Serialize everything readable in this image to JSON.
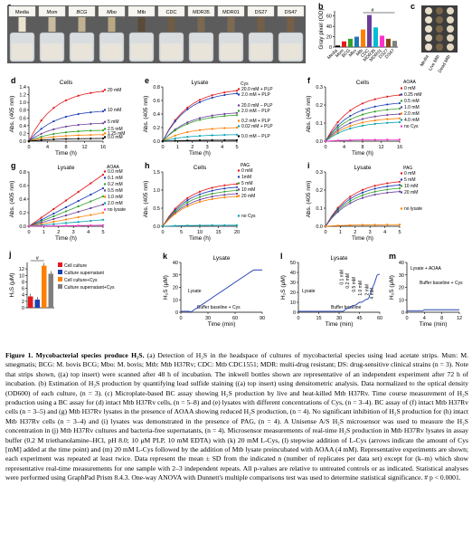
{
  "panels": {
    "a": {
      "letter": "a",
      "strips": [
        "Media",
        "Msm",
        "BCG",
        "Mbo",
        "Mtb",
        "CDC",
        "MDR35",
        "MDR01",
        "DS27",
        "DS47"
      ],
      "strip_colors": [
        "#ece3cf",
        "#c9bba0",
        "#c1b191",
        "#b9a883",
        "#5a4a38",
        "#6e5c45",
        "#7b6850",
        "#7e6a51",
        "#735f46",
        "#775f46"
      ]
    },
    "b": {
      "letter": "b",
      "ylabel": "Gray pixel (OD)",
      "categories": [
        "Media",
        "Msm",
        "BCG",
        "Mbo",
        "Mtb",
        "CDC",
        "MDR35",
        "MDR01",
        "DS27",
        "DS47"
      ],
      "values": [
        3,
        11,
        16,
        20,
        34,
        62,
        38,
        22,
        16,
        12
      ],
      "colors": [
        "#000000",
        "#e31a1c",
        "#33a02c",
        "#1f78b4",
        "#ff7f00",
        "#6a3d9a",
        "#00bcd4",
        "#ff33cc",
        "#8b4513",
        "#808080"
      ],
      "yticks": [
        "0",
        "20",
        "40",
        "60"
      ],
      "sig": "#"
    },
    "c": {
      "letter": "c",
      "labels": [
        "Media",
        "Live Mtb",
        "Dead Mtb"
      ],
      "column_colors": [
        "#e9e0cc",
        "#7a6448",
        "#e3d9c2"
      ]
    },
    "d": {
      "letter": "d",
      "title": "Cells",
      "ylabel": "Abs. (405 nm)",
      "xlabel": "Time (h)",
      "xticks": [
        "0",
        "4",
        "8",
        "12",
        "16"
      ],
      "yticks": [
        "0.0",
        "0.2",
        "0.4",
        "0.6",
        "0.8",
        "1.0",
        "1.2",
        "1.4"
      ],
      "legend": [
        "20 mM",
        "10 mM",
        "5 mM",
        "2.5 mM",
        "1.25 mM",
        "0.0 mM"
      ]
    },
    "e": {
      "letter": "e",
      "title": "Lysate",
      "ylabel": "Abs. (405 nm)",
      "xlabel": "Time (h)",
      "xticks": [
        "0",
        "1",
        "2",
        "3",
        "4",
        "5"
      ],
      "yticks": [
        "0.0",
        "0.2",
        "0.4",
        "0.6",
        "0.8"
      ],
      "legend_title": "Cys",
      "legend": [
        "20.0 mM + PLP",
        "2.0 mM + PLP",
        "20.0 mM – PLP",
        "2.0 mM – PLP",
        "0.2 mM + PLP",
        "0.02 mM + PLP",
        "0.0 mM – PLP"
      ]
    },
    "f": {
      "letter": "f",
      "title": "Cells",
      "ylabel": "Abs. (405 nm)",
      "xlabel": "Time (h)",
      "xticks": [
        "0",
        "4",
        "8",
        "12",
        "16"
      ],
      "yticks": [
        "0.0",
        "0.1",
        "0.2",
        "0.3"
      ],
      "legend_title": "AOAA",
      "legend": [
        "0 mM",
        "0.25 mM",
        "0.5 mM",
        "1.0 mM",
        "2.0 mM",
        "4.0 mM",
        "no Cys"
      ]
    },
    "g": {
      "letter": "g",
      "title": "Lysate",
      "ylabel": "Abs. (405 nm)",
      "xlabel": "Time (h)",
      "xticks": [
        "0",
        "1",
        "2",
        "3",
        "4",
        "5"
      ],
      "yticks": [
        "0.0",
        "0.2",
        "0.4",
        "0.6",
        "0.8"
      ],
      "legend_title": "AOAA",
      "legend": [
        "0.0 mM",
        "0.1 mM",
        "0.2 mM",
        "0.5 mM",
        "1.0 mM",
        "2.0 mM",
        "no lysate"
      ]
    },
    "h": {
      "letter": "h",
      "title": "Cells",
      "ylabel": "Abs. (405 nm)",
      "xlabel": "Time (h)",
      "xticks": [
        "0",
        "5",
        "10",
        "15",
        "20"
      ],
      "yticks": [
        "0.0",
        "0.5",
        "1.0",
        "1.5"
      ],
      "legend_title": "PAG",
      "legend": [
        "0 mM",
        "1mM",
        "5 mM",
        "10 mM",
        "20 mM",
        "no Cys"
      ]
    },
    "i": {
      "letter": "i",
      "title": "Lysate",
      "ylabel": "Abs. (405 nm)",
      "xlabel": "Time (h)",
      "xticks": [
        "0",
        "1",
        "2",
        "3",
        "4",
        "5"
      ],
      "yticks": [
        "0.0",
        "0.1",
        "0.2",
        "0.3"
      ],
      "legend_title": "PAG",
      "legend": [
        "0 mM",
        "5 mM",
        "10 mM",
        "20 mM",
        "no lysate"
      ]
    },
    "j": {
      "letter": "j",
      "ylabel": "H₂S (μM)",
      "yticks": [
        "0",
        "2",
        "4",
        "6",
        "8",
        "10",
        "12"
      ],
      "legend": [
        "Cell culture",
        "Culture supernatant",
        "Cell culture+Cys",
        "Culture supernatant+Cys"
      ],
      "colors": [
        "#e31a1c",
        "#1f3fb4",
        "#ff7f00",
        "#7f7f7f"
      ],
      "values": [
        3.5,
        2.5,
        13.0,
        10.5
      ],
      "sig": "#"
    },
    "k": {
      "letter": "k",
      "title": "Lysate",
      "ylabel": "H₂S (μM)",
      "xlabel": "Time (min)",
      "xticks": [
        "0",
        "30",
        "60",
        "90"
      ],
      "yticks": [
        "0",
        "10",
        "20",
        "30",
        "40"
      ],
      "annotations": [
        "Lysate",
        "Buffer baseline + Cys"
      ]
    },
    "l": {
      "letter": "l",
      "title": "Lysate",
      "ylabel": "H₂S (μM)",
      "xlabel": "Time (min)",
      "xticks": [
        "0",
        "15",
        "30",
        "45",
        "60"
      ],
      "yticks": [
        "0",
        "10",
        "20",
        "30",
        "40",
        "50"
      ],
      "annotations": [
        "Lysate",
        "Buffer baseline"
      ],
      "additions": [
        "0.1 mM",
        "0.2 mM",
        "0.5 mM",
        "1.0 mM",
        "2 mM",
        "4 mM"
      ]
    },
    "m": {
      "letter": "m",
      "ylabel": "H₂S (μM)",
      "xlabel": "Time (min)",
      "xticks": [
        "0",
        "4",
        "8",
        "12"
      ],
      "yticks": [
        "0",
        "10",
        "20",
        "30",
        "40"
      ],
      "annotations": [
        "Lysate + AOAA",
        "Buffer baseline + Cys"
      ]
    }
  },
  "caption": {
    "title": "Figure 1. Mycobacterial species produce H₂S.",
    "body": " (a) Detection of H₂S in the headspace of cultures of mycobacterial species using lead acetate strips. Msm: M. smegmatis; BCG: M. bovis BCG; Mbo: M. bovis; Mtb: Mtb H37Rv; CDC: Mtb CDC1551; MDR: multi-drug resistant; DS: drug-sensitive clinical strains (n = 3). Note that strips shown, ((a) top insert) were scanned after 48 h of incubation. The inkwell bottles shown are representative of an independent experiment after 72 h of incubation. (b) Estimation of H₂S production by quantifying lead sulfide staining ((a) top insert) using densitometric analysis. Data normalized to the optical density (OD600) of each culture, (n = 3). (c) Microplate-based BC assay showing H₂S production by live and heat-killed Mtb H37Rv. Time course measurement of H₂S production using a BC assay for (d) intact Mtb H37Rv cells, (n = 5–8) and (e) lysates with different concentrations of Cys, (n = 3–4). BC assay of (f) intact Mtb H37Rv cells (n = 3–5) and (g) Mtb H37Rv lysates in the presence of AOAA showing reduced H₂S production, (n = 4). No significant inhibition of H₂S production for (h) intact Mtb H37Rv cells (n = 3–4) and (i) lysates was demonstrated in the presence of PAG, (n = 4). A Unisense A/S H₂S microsensor was used to measure the H₂S concentration in (j) Mtb H37Rv cultures and bacteria-free supernatants, (n = 4). Microsensor measurements of real-time H₂S production in Mtb H37Rv lysates in assay buffer (0.2 M triethanolamine–HCl, pH 8.0; 10 μM PLP, 10 mM EDTA) with (k) 20 mM L-Cys, (l) stepwise addition of L-Cys (arrows indicate the amount of Cys [mM] added at the time point) and (m) 20 mM L-Cys followed by the addition of Mtb lysate preincubated with AOAA (4 mM). Representative experiments are shown; each experiment was repeated at least twice. Data represent the mean ± SD from the indicated n (number of replicates per data set) except for (k–m) which show representative real-time measurements for one sample with 2–3 independent repeats. All p-values are relative to untreated controls or as indicated. Statistical analyses were performed using GraphPad Prism 8.4.3. One-way ANOVA with Dunnett's multiple comparisons test was used to determine statistical significance. # p < 0.0001."
  }
}
